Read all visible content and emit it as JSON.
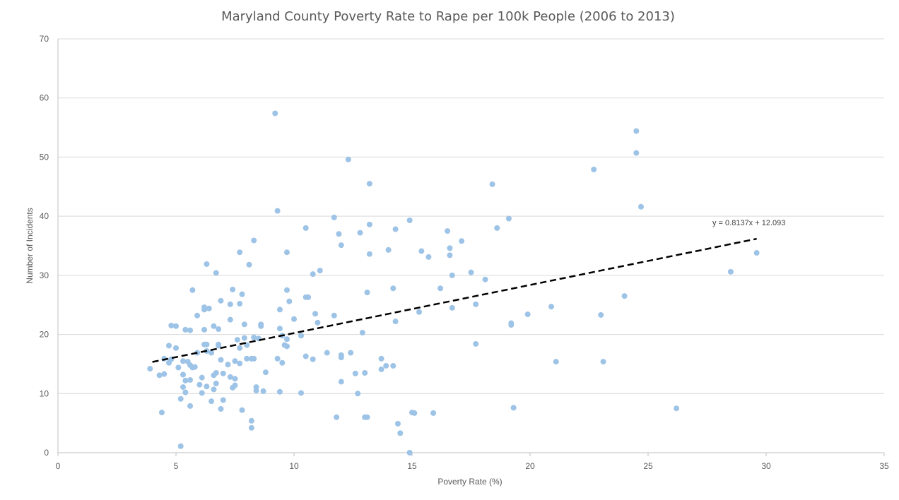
{
  "chart_data": {
    "type": "scatter",
    "title": "Maryland County Poverty Rate to Rape per 100k People (2006 to 2013)",
    "xlabel": "Poverty Rate (%)",
    "ylabel": "Number of Incidents",
    "xlim": [
      0,
      35
    ],
    "ylim": [
      0,
      70
    ],
    "xticks": [
      0,
      5,
      10,
      15,
      20,
      25,
      30,
      35
    ],
    "yticks": [
      0,
      10,
      20,
      30,
      40,
      50,
      60,
      70
    ],
    "grid": "horizontal",
    "legend": "none",
    "point_color": "#9dc3e6",
    "trendline": {
      "style": "dashed",
      "color": "#000000",
      "slope": 0.8137,
      "intercept": 12.093,
      "x_range": [
        4.0,
        29.6
      ],
      "equation": "y = 0.8137x + 12.093"
    },
    "points": [
      [
        3.9,
        14.2
      ],
      [
        4.3,
        13.1
      ],
      [
        4.4,
        6.8
      ],
      [
        4.5,
        15.9
      ],
      [
        4.5,
        13.3
      ],
      [
        4.7,
        18.1
      ],
      [
        4.7,
        15.2
      ],
      [
        4.8,
        21.5
      ],
      [
        4.8,
        15.8
      ],
      [
        5.0,
        21.4
      ],
      [
        5.0,
        17.7
      ],
      [
        5.1,
        14.4
      ],
      [
        5.2,
        9.1
      ],
      [
        5.2,
        1.1
      ],
      [
        5.3,
        15.5
      ],
      [
        5.3,
        13.2
      ],
      [
        5.3,
        11.1
      ],
      [
        5.4,
        20.8
      ],
      [
        5.4,
        12.2
      ],
      [
        5.4,
        10.2
      ],
      [
        5.5,
        15.4
      ],
      [
        5.6,
        14.8
      ],
      [
        5.6,
        12.3
      ],
      [
        5.6,
        7.9
      ],
      [
        5.6,
        20.7
      ],
      [
        5.7,
        27.5
      ],
      [
        5.7,
        14.4
      ],
      [
        5.8,
        14.5
      ],
      [
        5.9,
        23.2
      ],
      [
        5.9,
        16.9
      ],
      [
        6.0,
        11.5
      ],
      [
        6.1,
        12.7
      ],
      [
        6.1,
        10.1
      ],
      [
        6.2,
        24.6
      ],
      [
        6.2,
        24.2
      ],
      [
        6.2,
        20.8
      ],
      [
        6.2,
        18.3
      ],
      [
        6.3,
        17.2
      ],
      [
        6.3,
        18.3
      ],
      [
        6.3,
        11.2
      ],
      [
        6.3,
        31.9
      ],
      [
        6.4,
        24.4
      ],
      [
        6.5,
        16.9
      ],
      [
        6.5,
        8.7
      ],
      [
        6.6,
        21.4
      ],
      [
        6.6,
        13.1
      ],
      [
        6.6,
        10.7
      ],
      [
        6.7,
        30.4
      ],
      [
        6.7,
        13.5
      ],
      [
        6.7,
        11.7
      ],
      [
        6.8,
        18.1
      ],
      [
        6.8,
        18.3
      ],
      [
        6.8,
        20.9
      ],
      [
        6.9,
        15.7
      ],
      [
        6.9,
        25.7
      ],
      [
        6.9,
        7.4
      ],
      [
        7.0,
        13.4
      ],
      [
        7.0,
        8.9
      ],
      [
        7.2,
        14.9
      ],
      [
        7.3,
        22.5
      ],
      [
        7.3,
        12.8
      ],
      [
        7.3,
        25.1
      ],
      [
        7.4,
        27.6
      ],
      [
        7.4,
        11.0
      ],
      [
        7.5,
        15.5
      ],
      [
        7.5,
        12.5
      ],
      [
        7.5,
        11.4
      ],
      [
        7.6,
        19.1
      ],
      [
        7.7,
        33.9
      ],
      [
        7.7,
        25.2
      ],
      [
        7.7,
        17.7
      ],
      [
        7.7,
        15.1
      ],
      [
        7.8,
        26.8
      ],
      [
        7.8,
        7.2
      ],
      [
        7.9,
        19.4
      ],
      [
        7.9,
        21.7
      ],
      [
        8.0,
        18.2
      ],
      [
        8.0,
        15.9
      ],
      [
        8.1,
        31.8
      ],
      [
        8.2,
        15.9
      ],
      [
        8.2,
        5.4
      ],
      [
        8.2,
        4.2
      ],
      [
        8.3,
        19.5
      ],
      [
        8.3,
        15.9
      ],
      [
        8.3,
        35.9
      ],
      [
        8.4,
        10.5
      ],
      [
        8.4,
        11.1
      ],
      [
        8.5,
        19.3
      ],
      [
        8.6,
        21.7
      ],
      [
        8.6,
        21.4
      ],
      [
        8.7,
        10.4
      ],
      [
        8.8,
        13.6
      ],
      [
        9.2,
        57.4
      ],
      [
        9.3,
        40.9
      ],
      [
        9.3,
        15.9
      ],
      [
        9.4,
        24.2
      ],
      [
        9.4,
        21.0
      ],
      [
        9.4,
        10.3
      ],
      [
        9.5,
        15.2
      ],
      [
        9.5,
        19.8
      ],
      [
        9.6,
        18.2
      ],
      [
        9.7,
        18.0
      ],
      [
        9.7,
        19.2
      ],
      [
        9.7,
        27.5
      ],
      [
        9.7,
        33.9
      ],
      [
        9.8,
        25.6
      ],
      [
        10.0,
        22.6
      ],
      [
        10.3,
        10.1
      ],
      [
        10.3,
        19.8
      ],
      [
        10.5,
        38.0
      ],
      [
        10.5,
        16.3
      ],
      [
        10.5,
        26.3
      ],
      [
        10.6,
        26.3
      ],
      [
        10.8,
        30.2
      ],
      [
        10.8,
        15.8
      ],
      [
        10.9,
        23.5
      ],
      [
        11.0,
        22.0
      ],
      [
        11.1,
        30.8
      ],
      [
        11.4,
        16.9
      ],
      [
        11.7,
        39.8
      ],
      [
        11.7,
        23.2
      ],
      [
        11.8,
        6.0
      ],
      [
        11.9,
        37.0
      ],
      [
        12.0,
        35.1
      ],
      [
        12.0,
        16.5
      ],
      [
        12.0,
        16.1
      ],
      [
        12.0,
        12.0
      ],
      [
        12.3,
        49.6
      ],
      [
        12.4,
        16.9
      ],
      [
        12.6,
        13.4
      ],
      [
        12.7,
        10.0
      ],
      [
        12.8,
        37.2
      ],
      [
        12.9,
        20.3
      ],
      [
        13.0,
        13.5
      ],
      [
        13.0,
        6.0
      ],
      [
        13.1,
        6.0
      ],
      [
        13.1,
        27.1
      ],
      [
        13.2,
        45.5
      ],
      [
        13.2,
        38.6
      ],
      [
        13.2,
        33.6
      ],
      [
        13.7,
        15.9
      ],
      [
        13.7,
        14.1
      ],
      [
        13.9,
        14.7
      ],
      [
        14.0,
        34.3
      ],
      [
        14.2,
        14.7
      ],
      [
        14.2,
        27.8
      ],
      [
        14.3,
        22.2
      ],
      [
        14.3,
        37.8
      ],
      [
        14.4,
        4.9
      ],
      [
        14.5,
        3.3
      ],
      [
        14.9,
        39.3
      ],
      [
        14.9,
        0.0
      ],
      [
        15.0,
        6.8
      ],
      [
        15.1,
        6.7
      ],
      [
        15.3,
        23.8
      ],
      [
        15.4,
        34.1
      ],
      [
        15.7,
        33.1
      ],
      [
        15.9,
        6.7
      ],
      [
        16.2,
        27.8
      ],
      [
        16.5,
        37.5
      ],
      [
        16.6,
        34.6
      ],
      [
        16.6,
        33.4
      ],
      [
        16.7,
        30.0
      ],
      [
        16.7,
        24.5
      ],
      [
        17.1,
        35.8
      ],
      [
        17.5,
        30.5
      ],
      [
        17.7,
        25.1
      ],
      [
        17.7,
        18.4
      ],
      [
        18.1,
        29.3
      ],
      [
        18.4,
        45.4
      ],
      [
        18.6,
        38.0
      ],
      [
        19.1,
        39.6
      ],
      [
        19.2,
        21.9
      ],
      [
        19.2,
        21.6
      ],
      [
        19.3,
        7.6
      ],
      [
        19.9,
        23.4
      ],
      [
        20.9,
        24.7
      ],
      [
        21.1,
        15.4
      ],
      [
        22.7,
        47.9
      ],
      [
        23.0,
        23.3
      ],
      [
        23.1,
        15.4
      ],
      [
        24.0,
        26.5
      ],
      [
        24.5,
        54.4
      ],
      [
        24.5,
        50.7
      ],
      [
        24.7,
        41.6
      ],
      [
        26.2,
        7.5
      ],
      [
        28.5,
        30.6
      ],
      [
        29.6,
        33.8
      ]
    ]
  }
}
